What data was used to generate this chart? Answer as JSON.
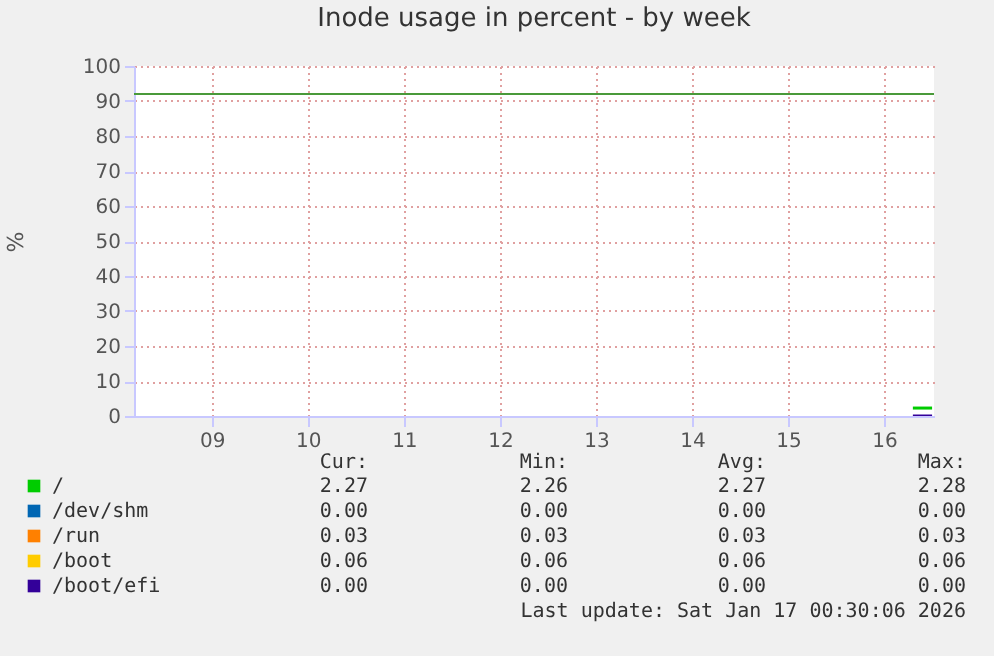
{
  "chart_data": {
    "type": "line",
    "title": "Inode usage in percent - by week",
    "ylabel": "%",
    "xlim": [
      8.69,
      17.02
    ],
    "x": [
      16.8,
      17.0
    ],
    "xticks": [
      {
        "value": 9.5,
        "label": "09"
      },
      {
        "value": 10.5,
        "label": "10"
      },
      {
        "value": 11.5,
        "label": "11"
      },
      {
        "value": 12.5,
        "label": "12"
      },
      {
        "value": 13.5,
        "label": "13"
      },
      {
        "value": 14.5,
        "label": "14"
      },
      {
        "value": 15.5,
        "label": "15"
      },
      {
        "value": 16.5,
        "label": "16"
      }
    ],
    "ylim": [
      0,
      100
    ],
    "yticks": [
      0,
      10,
      20,
      30,
      40,
      50,
      60,
      70,
      80,
      90,
      100
    ],
    "grid": true,
    "legend": "bottom",
    "line_style": "solid",
    "marker": "none",
    "series": [
      {
        "name": "/",
        "color": "#00cc00",
        "values": [
          2.27,
          2.27
        ]
      },
      {
        "name": "/dev/shm",
        "color": "#0066b3",
        "values": [
          null,
          null
        ]
      },
      {
        "name": "/run",
        "color": "#ff8000",
        "values": [
          null,
          null
        ]
      },
      {
        "name": "/boot",
        "color": "#ffcc00",
        "values": [
          null,
          null
        ]
      },
      {
        "name": "/boot/efi",
        "color": "#330099",
        "values": [
          0.0,
          0.0
        ]
      }
    ],
    "ref_lines": [
      {
        "axis": "y",
        "value": 92,
        "color": "#4a9a3a",
        "line_style": "solid"
      }
    ],
    "annotations": [
      "Cur:",
      "Min:",
      "Avg:",
      "Max:",
      "2.27",
      "2.26",
      "2.27",
      "2.28",
      "0.00",
      "0.00",
      "0.00",
      "0.00",
      "0.03",
      "0.03",
      "0.03",
      "0.03",
      "0.06",
      "0.06",
      "0.06",
      "0.06",
      "0.00",
      "0.00",
      "0.00",
      "0.00",
      "Last update: Sat Jan 17 00:30:06 2026"
    ]
  }
}
